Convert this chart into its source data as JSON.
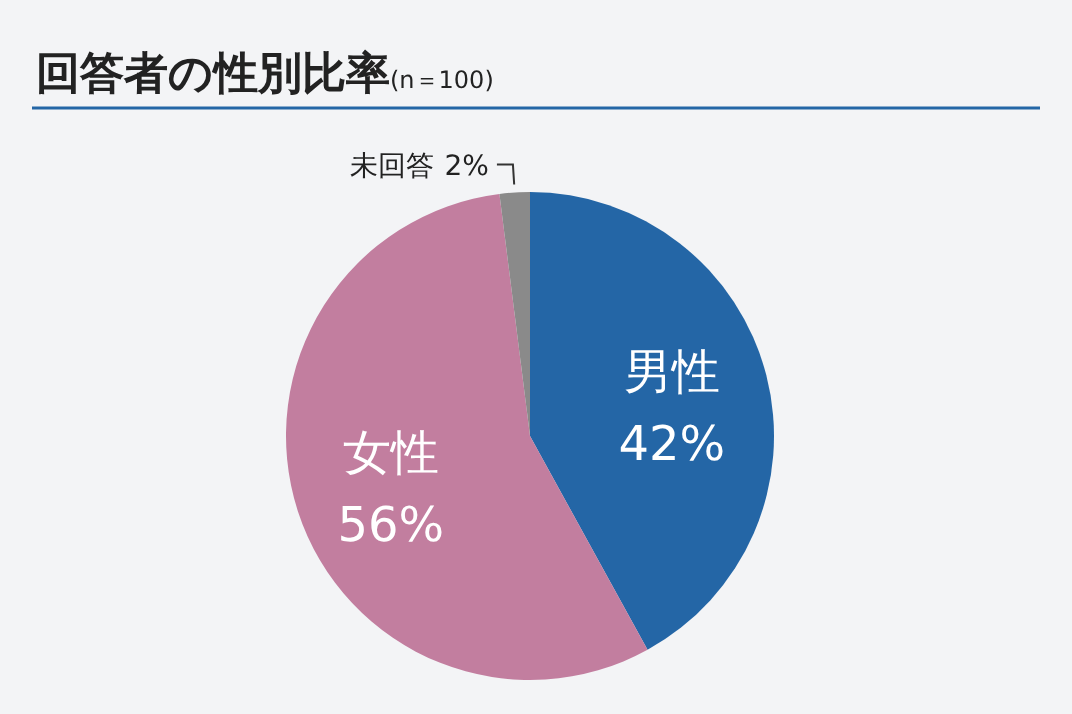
{
  "chart_data": {
    "type": "pie",
    "title": "回答者の性別比率",
    "subtitle": "(n＝100)",
    "categories": [
      "男性",
      "女性",
      "未回答"
    ],
    "values": [
      42,
      56,
      2
    ],
    "colors": [
      "#2466a6",
      "#c27e9f",
      "#8a8a8a"
    ],
    "value_labels": [
      "42%",
      "56%",
      "2%"
    ]
  }
}
